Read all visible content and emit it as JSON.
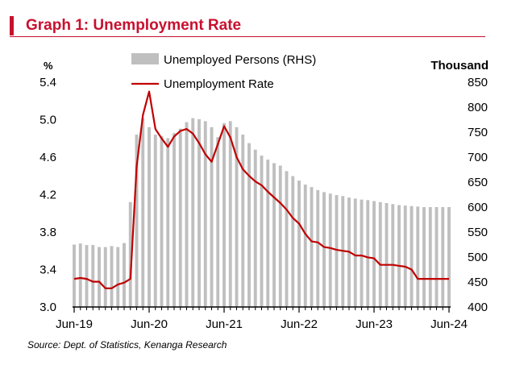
{
  "title": "Graph 1: Unemployment Rate",
  "source": "Source:  Dept. of Statistics, Kenanga Research",
  "colors": {
    "accent": "#c8102e",
    "bars": "#bfbfbf",
    "line": "#c00000",
    "axis": "#000000"
  },
  "chart_data": {
    "type": "bar+line",
    "left_axis_unit": "%",
    "right_axis_unit": "Thousand",
    "left_axis": {
      "min": 3.0,
      "max": 5.4,
      "ticks": [
        "3.0",
        "3.4",
        "3.8",
        "4.2",
        "4.6",
        "5.0",
        "5.4"
      ]
    },
    "right_axis": {
      "min": 400,
      "max": 850,
      "ticks": [
        "400",
        "450",
        "500",
        "550",
        "600",
        "650",
        "700",
        "750",
        "800",
        "850"
      ]
    },
    "x_axis": {
      "ticks": [
        "Jun-19",
        "Jun-20",
        "Jun-21",
        "Jun-22",
        "Jun-23",
        "Jun-24"
      ],
      "tick_index": [
        0,
        12,
        24,
        36,
        48,
        60
      ]
    },
    "legend": [
      "Unemployed Persons (RHS)",
      "Unemployment Rate"
    ],
    "series": [
      {
        "name": "Unemployed Persons (RHS)",
        "axis": "right",
        "kind": "bar",
        "values": [
          525,
          527,
          524,
          524,
          520,
          520,
          522,
          520,
          528,
          610,
          745,
          778,
          760,
          745,
          742,
          738,
          748,
          757,
          770,
          778,
          776,
          772,
          760,
          740,
          768,
          772,
          760,
          745,
          728,
          715,
          703,
          695,
          688,
          683,
          672,
          662,
          653,
          645,
          640,
          634,
          630,
          627,
          624,
          622,
          619,
          617,
          615,
          614,
          612,
          610,
          608,
          606,
          604,
          603,
          602,
          601,
          600,
          600,
          600,
          600,
          600
        ]
      },
      {
        "name": "Unemployment Rate",
        "axis": "left",
        "kind": "line",
        "values": [
          3.3,
          3.31,
          3.3,
          3.27,
          3.27,
          3.2,
          3.2,
          3.24,
          3.26,
          3.3,
          4.5,
          5.05,
          5.3,
          4.9,
          4.8,
          4.71,
          4.82,
          4.88,
          4.9,
          4.85,
          4.75,
          4.63,
          4.55,
          4.74,
          4.93,
          4.81,
          4.6,
          4.47,
          4.4,
          4.34,
          4.3,
          4.23,
          4.17,
          4.11,
          4.04,
          3.95,
          3.89,
          3.78,
          3.7,
          3.69,
          3.64,
          3.63,
          3.61,
          3.6,
          3.59,
          3.55,
          3.55,
          3.53,
          3.52,
          3.45,
          3.45,
          3.45,
          3.44,
          3.43,
          3.4,
          3.3,
          3.3,
          3.3,
          3.3,
          3.3,
          3.3
        ]
      }
    ]
  }
}
